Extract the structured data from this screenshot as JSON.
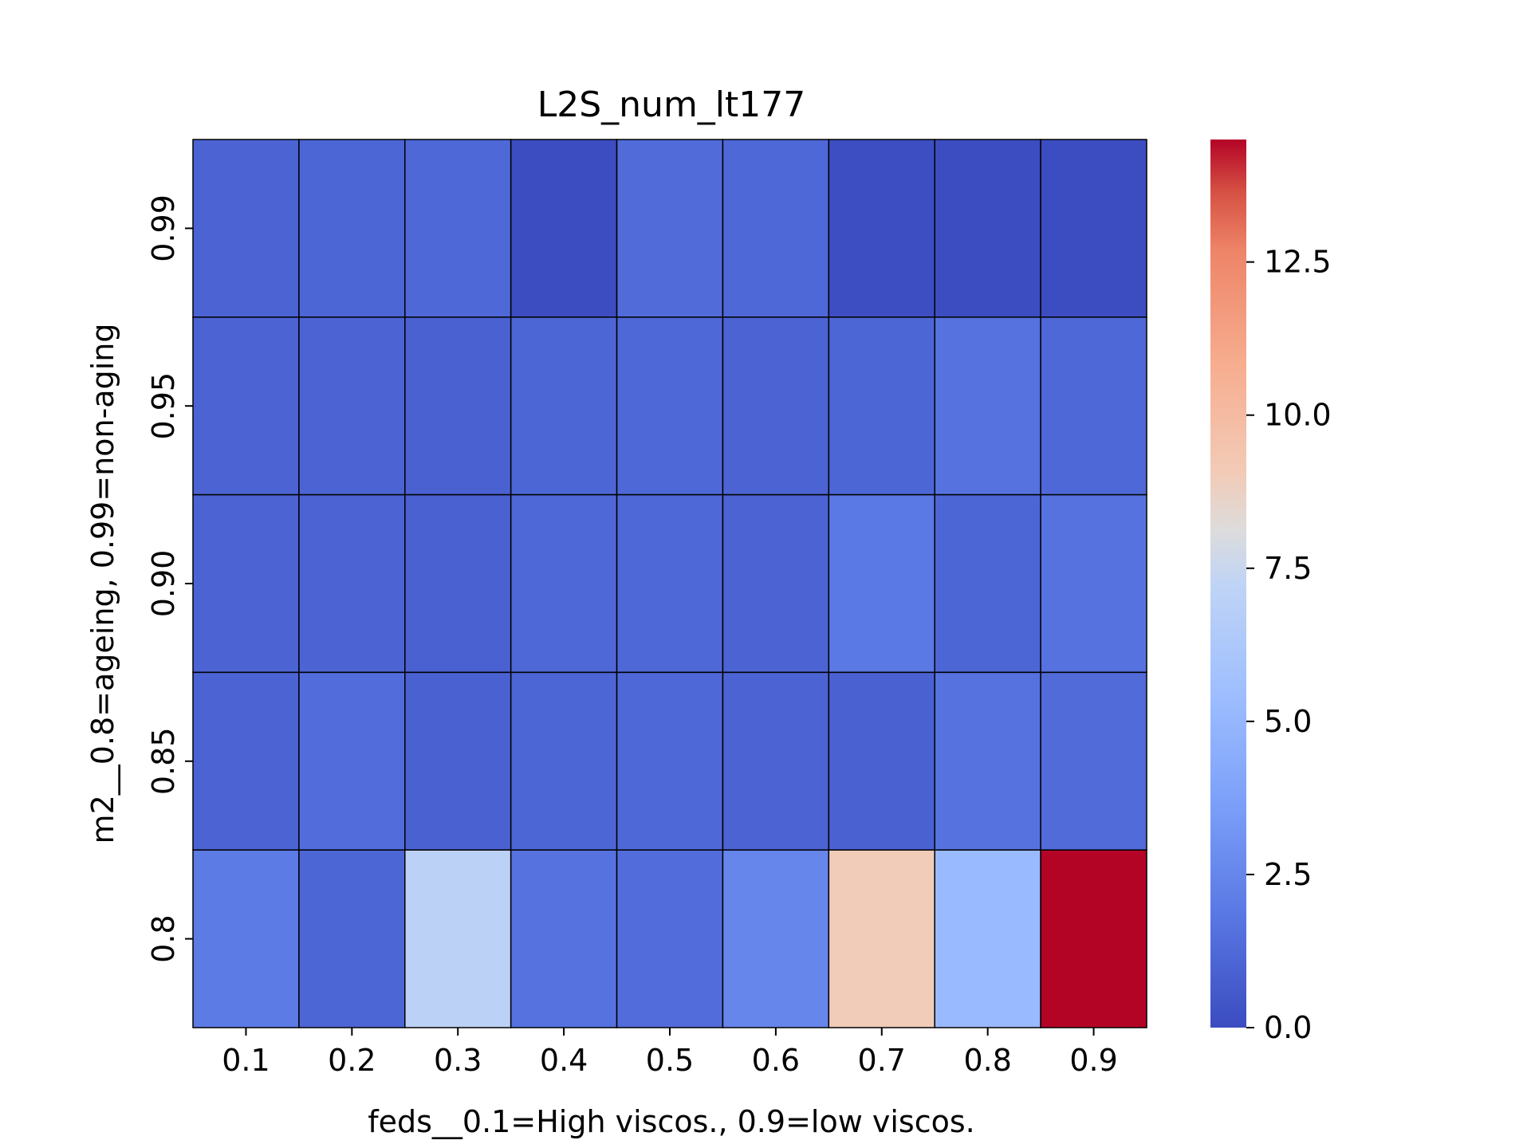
{
  "chart_data": {
    "type": "heatmap",
    "title": "L2S_num_lt177",
    "xlabel": "feds__0.1=High viscos., 0.9=low viscos.",
    "ylabel": "m2__0.8=ageing, 0.99=non-aging",
    "x_categories": [
      "0.1",
      "0.2",
      "0.3",
      "0.4",
      "0.5",
      "0.6",
      "0.7",
      "0.8",
      "0.9"
    ],
    "y_categories": [
      "0.99",
      "0.95",
      "0.90",
      "0.85",
      "0.8"
    ],
    "values": [
      [
        1.0,
        1.1,
        1.2,
        0.05,
        1.3,
        1.2,
        0.1,
        0.05,
        0.05
      ],
      [
        1.0,
        1.0,
        0.9,
        1.1,
        1.2,
        1.0,
        1.1,
        1.6,
        1.2
      ],
      [
        1.0,
        1.0,
        0.9,
        1.2,
        1.2,
        1.0,
        1.9,
        1.1,
        1.6
      ],
      [
        1.0,
        1.4,
        0.9,
        1.1,
        1.2,
        1.0,
        0.9,
        1.6,
        1.3
      ],
      [
        2.0,
        1.1,
        7.0,
        1.6,
        1.4,
        2.5,
        9.0,
        5.2,
        14.5
      ]
    ],
    "colormap": "coolwarm",
    "colorbar": {
      "vmin": 0.0,
      "vmax": 14.5,
      "ticks": [
        0.0,
        2.5,
        5.0,
        7.5,
        10.0,
        12.5
      ],
      "tick_labels": [
        "0.0",
        "2.5",
        "5.0",
        "7.5",
        "10.0",
        "12.5"
      ]
    },
    "cell_border_color": "#000000"
  }
}
